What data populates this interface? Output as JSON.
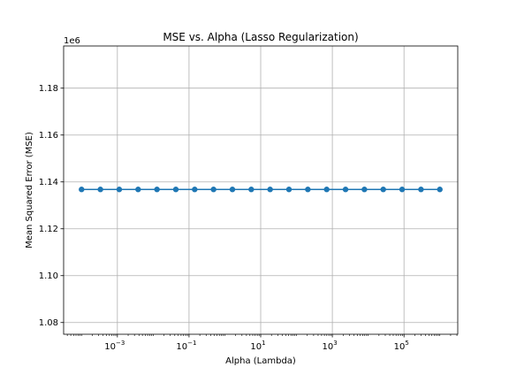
{
  "chart_data": {
    "type": "line",
    "title": "MSE vs. Alpha (Lasso Regularization)",
    "xlabel": "Alpha (Lambda)",
    "ylabel": "Mean Squared Error (MSE)",
    "xscale": "log",
    "xlim": [
      3.16e-05,
      3162278
    ],
    "ylim": [
      1075000,
      1198000
    ],
    "y_offset_label": "1e6",
    "x_ticks": [
      {
        "value": 0.001,
        "base": "10",
        "exp": "−3"
      },
      {
        "value": 0.1,
        "base": "10",
        "exp": "−1"
      },
      {
        "value": 10,
        "base": "10",
        "exp": "1"
      },
      {
        "value": 1000,
        "base": "10",
        "exp": "3"
      },
      {
        "value": 100000,
        "base": "10",
        "exp": "5"
      }
    ],
    "y_ticks": [
      {
        "value": 1080000,
        "label": "1.08"
      },
      {
        "value": 1100000,
        "label": "1.10"
      },
      {
        "value": 1120000,
        "label": "1.12"
      },
      {
        "value": 1140000,
        "label": "1.14"
      },
      {
        "value": 1160000,
        "label": "1.16"
      },
      {
        "value": 1180000,
        "label": "1.18"
      }
    ],
    "grid": true,
    "series": [
      {
        "color": "#1f77b4",
        "x": [
          0.0001,
          0.000336,
          0.001129,
          0.003793,
          0.012743,
          0.042813,
          0.143845,
          0.483293,
          1.623777,
          5.455595,
          18.329807,
          61.584821,
          206.913808,
          695.192796,
          2335.721469,
          7847.599704,
          26366.508987,
          88586.679041,
          297635.144163,
          1000000
        ],
        "y": [
          1136800,
          1136800,
          1136800,
          1136800,
          1136800,
          1136800,
          1136800,
          1136800,
          1136800,
          1136800,
          1136800,
          1136800,
          1136800,
          1136800,
          1136800,
          1136800,
          1136800,
          1136800,
          1136800,
          1136800
        ]
      }
    ]
  }
}
